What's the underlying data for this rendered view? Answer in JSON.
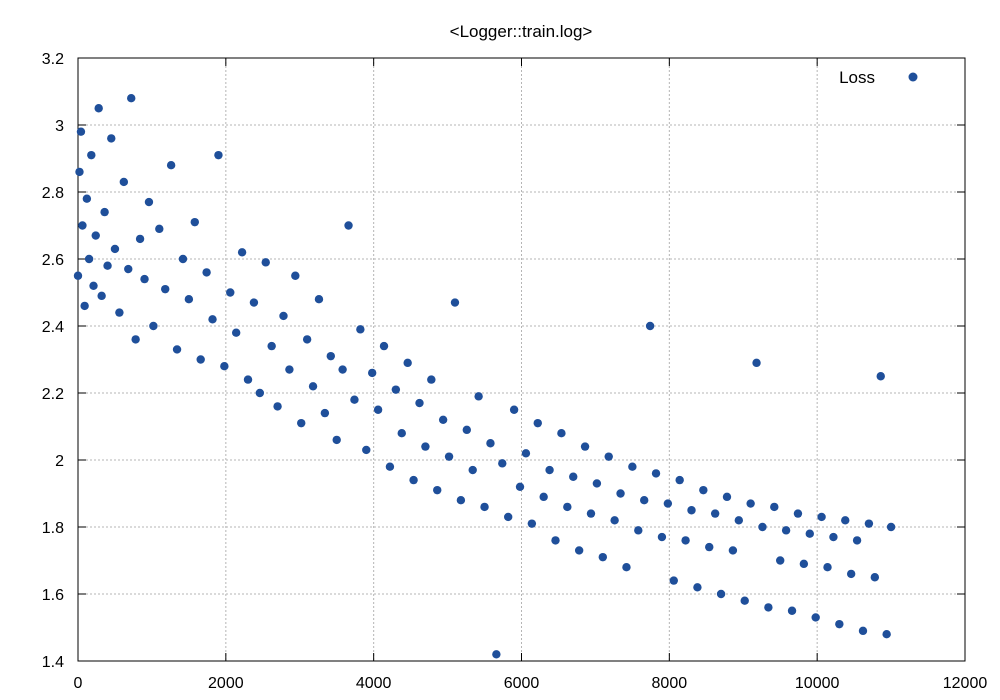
{
  "chart_data": {
    "type": "scatter",
    "title": "<Logger::train.log>",
    "xlabel": "",
    "ylabel": "",
    "xlim": [
      0,
      12000
    ],
    "ylim": [
      1.4,
      3.2
    ],
    "x_ticks": [
      0,
      2000,
      4000,
      6000,
      8000,
      10000,
      12000
    ],
    "y_ticks": [
      1.4,
      1.6,
      1.8,
      2.0,
      2.2,
      2.4,
      2.6,
      2.8,
      3.0,
      3.2
    ],
    "x_tick_labels": [
      "0",
      "2000",
      "4000",
      "6000",
      "8000",
      "10000",
      "12000"
    ],
    "y_tick_labels": [
      "1.4",
      "1.6",
      "1.8",
      "2",
      "2.2",
      "2.4",
      "2.6",
      "2.8",
      "3",
      "3.2"
    ],
    "grid": true,
    "legend_position": "top-right",
    "series": [
      {
        "name": "Loss",
        "color": "#1f4f9a",
        "points": [
          [
            0,
            2.55
          ],
          [
            20,
            2.86
          ],
          [
            40,
            2.98
          ],
          [
            60,
            2.7
          ],
          [
            90,
            2.46
          ],
          [
            120,
            2.78
          ],
          [
            150,
            2.6
          ],
          [
            180,
            2.91
          ],
          [
            210,
            2.52
          ],
          [
            240,
            2.67
          ],
          [
            280,
            3.05
          ],
          [
            320,
            2.49
          ],
          [
            360,
            2.74
          ],
          [
            400,
            2.58
          ],
          [
            450,
            2.96
          ],
          [
            500,
            2.63
          ],
          [
            560,
            2.44
          ],
          [
            620,
            2.83
          ],
          [
            680,
            2.57
          ],
          [
            720,
            3.08
          ],
          [
            780,
            2.36
          ],
          [
            840,
            2.66
          ],
          [
            900,
            2.54
          ],
          [
            960,
            2.77
          ],
          [
            1020,
            2.4
          ],
          [
            1100,
            2.69
          ],
          [
            1180,
            2.51
          ],
          [
            1260,
            2.88
          ],
          [
            1340,
            2.33
          ],
          [
            1420,
            2.6
          ],
          [
            1500,
            2.48
          ],
          [
            1580,
            2.71
          ],
          [
            1660,
            2.3
          ],
          [
            1740,
            2.56
          ],
          [
            1820,
            2.42
          ],
          [
            1900,
            2.91
          ],
          [
            1980,
            2.28
          ],
          [
            2060,
            2.5
          ],
          [
            2140,
            2.38
          ],
          [
            2220,
            2.62
          ],
          [
            2300,
            2.24
          ],
          [
            2380,
            2.47
          ],
          [
            2460,
            2.2
          ],
          [
            2540,
            2.59
          ],
          [
            2620,
            2.34
          ],
          [
            2700,
            2.16
          ],
          [
            2780,
            2.43
          ],
          [
            2860,
            2.27
          ],
          [
            2940,
            2.55
          ],
          [
            3020,
            2.11
          ],
          [
            3100,
            2.36
          ],
          [
            3180,
            2.22
          ],
          [
            3260,
            2.48
          ],
          [
            3340,
            2.14
          ],
          [
            3420,
            2.31
          ],
          [
            3500,
            2.06
          ],
          [
            3580,
            2.27
          ],
          [
            3660,
            2.7
          ],
          [
            3740,
            2.18
          ],
          [
            3820,
            2.39
          ],
          [
            3900,
            2.03
          ],
          [
            3980,
            2.26
          ],
          [
            4060,
            2.15
          ],
          [
            4140,
            2.34
          ],
          [
            4220,
            1.98
          ],
          [
            4300,
            2.21
          ],
          [
            4380,
            2.08
          ],
          [
            4460,
            2.29
          ],
          [
            4540,
            1.94
          ],
          [
            4620,
            2.17
          ],
          [
            4700,
            2.04
          ],
          [
            4780,
            2.24
          ],
          [
            4860,
            1.91
          ],
          [
            4940,
            2.12
          ],
          [
            5020,
            2.01
          ],
          [
            5100,
            2.47
          ],
          [
            5180,
            1.88
          ],
          [
            5260,
            2.09
          ],
          [
            5340,
            1.97
          ],
          [
            5420,
            2.19
          ],
          [
            5500,
            1.86
          ],
          [
            5580,
            2.05
          ],
          [
            5660,
            1.42
          ],
          [
            5740,
            1.99
          ],
          [
            5820,
            1.83
          ],
          [
            5900,
            2.15
          ],
          [
            5980,
            1.92
          ],
          [
            6060,
            2.02
          ],
          [
            6140,
            1.81
          ],
          [
            6220,
            2.11
          ],
          [
            6300,
            1.89
          ],
          [
            6380,
            1.97
          ],
          [
            6460,
            1.76
          ],
          [
            6540,
            2.08
          ],
          [
            6620,
            1.86
          ],
          [
            6700,
            1.95
          ],
          [
            6780,
            1.73
          ],
          [
            6860,
            2.04
          ],
          [
            6940,
            1.84
          ],
          [
            7020,
            1.93
          ],
          [
            7100,
            1.71
          ],
          [
            7180,
            2.01
          ],
          [
            7260,
            1.82
          ],
          [
            7340,
            1.9
          ],
          [
            7420,
            1.68
          ],
          [
            7500,
            1.98
          ],
          [
            7580,
            1.79
          ],
          [
            7660,
            1.88
          ],
          [
            7740,
            2.4
          ],
          [
            7820,
            1.96
          ],
          [
            7900,
            1.77
          ],
          [
            7980,
            1.87
          ],
          [
            8060,
            1.64
          ],
          [
            8140,
            1.94
          ],
          [
            8220,
            1.76
          ],
          [
            8300,
            1.85
          ],
          [
            8380,
            1.62
          ],
          [
            8460,
            1.91
          ],
          [
            8540,
            1.74
          ],
          [
            8620,
            1.84
          ],
          [
            8700,
            1.6
          ],
          [
            8780,
            1.89
          ],
          [
            8860,
            1.73
          ],
          [
            8940,
            1.82
          ],
          [
            9020,
            1.58
          ],
          [
            9100,
            1.87
          ],
          [
            9180,
            2.29
          ],
          [
            9260,
            1.8
          ],
          [
            9340,
            1.56
          ],
          [
            9420,
            1.86
          ],
          [
            9500,
            1.7
          ],
          [
            9580,
            1.79
          ],
          [
            9660,
            1.55
          ],
          [
            9740,
            1.84
          ],
          [
            9820,
            1.69
          ],
          [
            9900,
            1.78
          ],
          [
            9980,
            1.53
          ],
          [
            10060,
            1.83
          ],
          [
            10140,
            1.68
          ],
          [
            10220,
            1.77
          ],
          [
            10300,
            1.51
          ],
          [
            10380,
            1.82
          ],
          [
            10460,
            1.66
          ],
          [
            10540,
            1.76
          ],
          [
            10620,
            1.49
          ],
          [
            10700,
            1.81
          ],
          [
            10780,
            1.65
          ],
          [
            10860,
            2.25
          ],
          [
            10940,
            1.48
          ],
          [
            11000,
            1.8
          ]
        ]
      }
    ],
    "legend": {
      "label": "Loss"
    }
  }
}
